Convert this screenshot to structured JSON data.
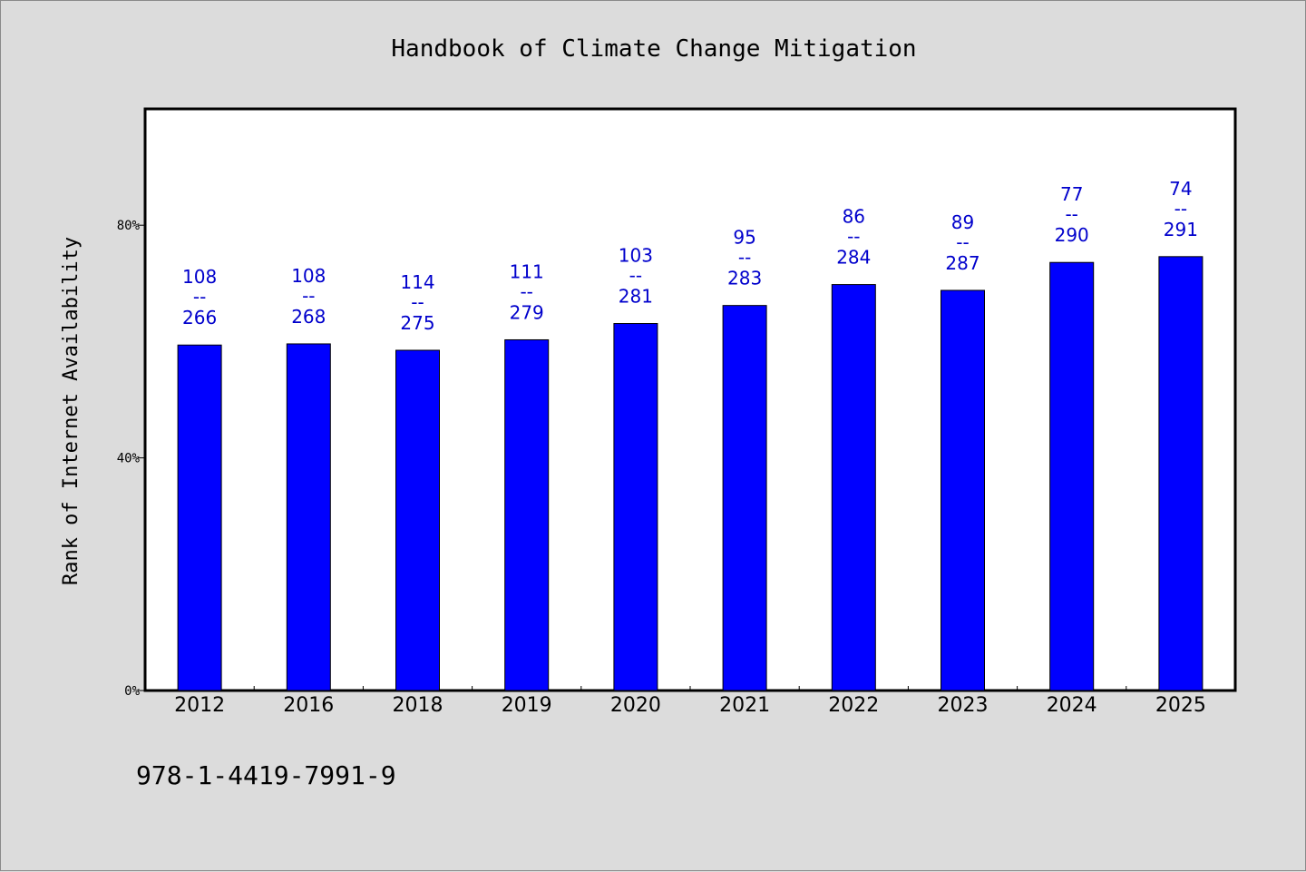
{
  "chart_data": {
    "type": "bar",
    "title": "Handbook of Climate Change Mitigation",
    "ylabel": "Rank of Internet Availability",
    "xlabel": "",
    "categories": [
      "2012",
      "2016",
      "2018",
      "2019",
      "2020",
      "2021",
      "2022",
      "2023",
      "2024",
      "2025"
    ],
    "values": [
      59.4,
      59.6,
      58.5,
      60.3,
      63.1,
      66.2,
      69.8,
      68.8,
      73.6,
      74.6
    ],
    "labels_top": [
      "108",
      "108",
      "114",
      "111",
      "103",
      "95",
      "86",
      "89",
      "77",
      "74"
    ],
    "labels_sep": "--",
    "labels_bottom": [
      "266",
      "268",
      "275",
      "279",
      "281",
      "283",
      "284",
      "287",
      "290",
      "291"
    ],
    "yticks": [
      0,
      40,
      80
    ],
    "ytick_labels": [
      "0%",
      "40%",
      "80%"
    ],
    "ylim": [
      0,
      100
    ],
    "grid": false,
    "bar_color": "#0000ff",
    "label_color": "#0000cc",
    "background_color": "#dcdcdc",
    "plot_background": "#ffffff"
  },
  "footer": {
    "isbn": "978-1-4419-7991-9"
  }
}
